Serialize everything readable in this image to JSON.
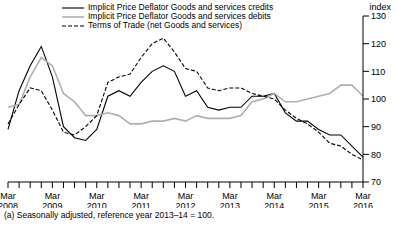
{
  "chart_data": {
    "type": "line",
    "y_label": "index",
    "annotations": [
      "(a) Seasonally adjusted, reference year 2013–14 = 100."
    ],
    "categories": [
      "Mar 2008",
      null,
      null,
      null,
      "Mar 2009",
      null,
      null,
      null,
      "Mar 2010",
      null,
      null,
      null,
      "Mar 2011",
      null,
      null,
      null,
      "Mar 2012",
      null,
      null,
      null,
      "Mar 2013",
      null,
      null,
      null,
      "Mar 2014",
      null,
      null,
      null,
      "Mar 2015",
      null,
      null,
      null,
      "Mar 2016"
    ],
    "series": [
      {
        "name": "Implicit Price Deflator Goods and services credits",
        "color": "#000000",
        "line_style": "solid",
        "values": [
          89,
          103,
          112,
          119,
          108,
          90,
          86,
          85,
          89,
          101,
          103,
          101,
          106,
          110,
          112,
          110,
          101,
          103,
          97,
          96,
          97,
          97,
          101,
          101,
          102,
          95,
          92,
          92,
          89,
          87,
          87,
          83,
          79
        ]
      },
      {
        "name": "Implicit Price Deflator Goods and services debits",
        "color": "#b0b0b0",
        "line_style": "solid",
        "values": [
          97,
          98,
          108,
          115,
          112,
          102,
          99,
          94,
          94,
          95,
          94,
          91,
          91,
          92,
          92,
          93,
          92,
          94,
          93,
          93,
          93,
          94,
          99,
          100,
          102,
          99,
          99,
          100,
          101,
          102,
          105,
          105,
          101
        ]
      },
      {
        "name": "Terms of Trade (net Goods and services)",
        "color": "#000000",
        "line_style": "dashed",
        "values": [
          91,
          98,
          104,
          103,
          96,
          88,
          87,
          90,
          94,
          106,
          108,
          109,
          115,
          120,
          122,
          117,
          111,
          110,
          104,
          103,
          104,
          104,
          102,
          101,
          100,
          96,
          93,
          91,
          88,
          84,
          83,
          80,
          78
        ]
      }
    ],
    "ylim": [
      70,
      130
    ],
    "yticks": [
      70,
      80,
      90,
      100,
      110,
      120,
      130
    ],
    "grid": false
  }
}
